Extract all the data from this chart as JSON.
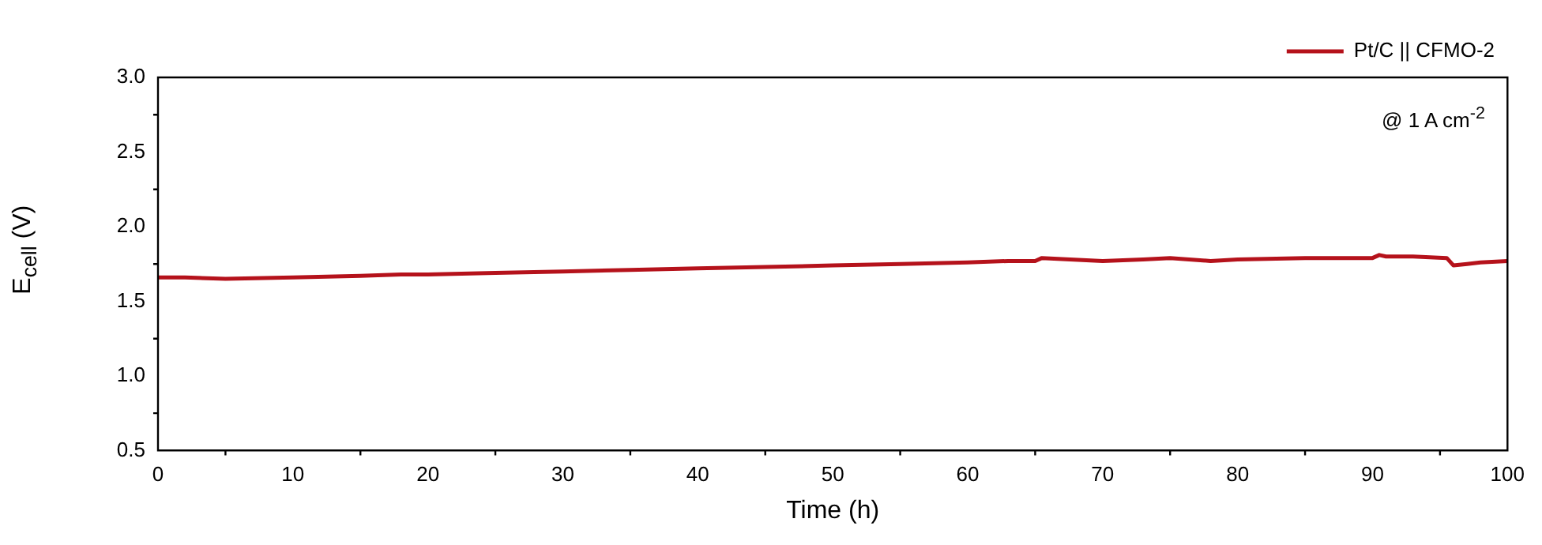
{
  "chart_data": {
    "type": "line",
    "xlabel": "Time (h)",
    "ylabel": "E$_{cell}$ (V)",
    "annotations": [
      "@ 1 A cm$^{-2}$"
    ],
    "x": [
      0,
      2,
      5,
      10,
      15,
      18,
      20,
      25,
      30,
      35,
      40,
      45,
      50,
      55,
      60,
      63,
      65,
      65.5,
      70,
      73,
      75,
      78,
      80,
      85,
      88,
      90,
      90.5,
      91,
      93,
      95.5,
      96,
      97,
      98,
      100
    ],
    "series": [
      {
        "name": "Pt/C || CFMO-2",
        "color": "#b5121b",
        "values": [
          1.66,
          1.66,
          1.65,
          1.66,
          1.67,
          1.68,
          1.68,
          1.69,
          1.7,
          1.71,
          1.72,
          1.73,
          1.74,
          1.75,
          1.76,
          1.77,
          1.77,
          1.79,
          1.77,
          1.78,
          1.79,
          1.77,
          1.78,
          1.79,
          1.79,
          1.79,
          1.81,
          1.8,
          1.8,
          1.79,
          1.74,
          1.75,
          1.76,
          1.77
        ]
      }
    ],
    "xlim": [
      0,
      100
    ],
    "xticks": [
      0,
      10,
      20,
      30,
      40,
      50,
      60,
      70,
      80,
      90,
      100
    ],
    "ylim": [
      0.5,
      3.0
    ],
    "yticks": [
      0.5,
      {
        "value": 1,
        "label": "1.0"
      },
      1.5,
      {
        "value": 2,
        "label": "2.0"
      },
      2.5,
      {
        "value": 3,
        "label": "3.0"
      }
    ],
    "grid": false,
    "legend": "top right",
    "marker": "none",
    "line_style": "solid"
  }
}
